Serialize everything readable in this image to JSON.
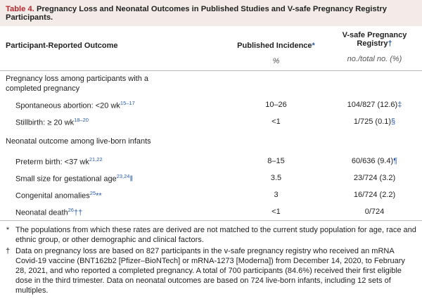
{
  "table": {
    "caption": {
      "label": "Table 4.",
      "title": "Pregnancy Loss and Neonatal Outcomes in Published Studies and V-safe Pregnancy Registry Participants."
    },
    "header": {
      "outcome": "Participant-Reported Outcome",
      "published": "Published Incidence",
      "published_mark": "*",
      "published_unit": "%",
      "vsafe": "V-safe Pregnancy Registry",
      "vsafe_mark": "†",
      "vsafe_unit": "no./total no. (%)"
    },
    "sections": [
      {
        "heading": "Pregnancy loss among participants with a completed pregnancy",
        "rows": [
          {
            "label": "Spontaneous abortion: <20 wk",
            "ref": "15–17",
            "published": "10–26",
            "vsafe": "104/827 (12.6)",
            "vsafe_mark": "‡"
          },
          {
            "label": "Stillbirth: ≥ 20 wk",
            "ref": "18–20",
            "published": "<1",
            "vsafe": "1/725 (0.1)",
            "vsafe_mark": "§"
          }
        ]
      },
      {
        "heading": "Neonatal outcome among live-born infants",
        "rows": [
          {
            "label": "Preterm birth: <37 wk",
            "ref": "21,22",
            "published": "8–15",
            "vsafe": "60/636 (9.4)",
            "vsafe_mark": "¶"
          },
          {
            "label": "Small size for gestational age",
            "ref": "23,24",
            "label_mark": "‖",
            "published": "3.5",
            "vsafe": "23/724 (3.2)"
          },
          {
            "label": "Congenital anomalies",
            "ref": "25",
            "label_mark": "**",
            "published": "3",
            "vsafe": "16/724 (2.2)"
          },
          {
            "label": "Neonatal death",
            "ref": "26",
            "label_mark": "††",
            "published": "<1",
            "vsafe": "0/724"
          }
        ]
      }
    ]
  },
  "footnotes": [
    {
      "symbol": "*",
      "text": "The populations from which these rates are derived are not matched to the current study population for age, race and ethnic group, or other demographic and clinical factors."
    },
    {
      "symbol": "†",
      "text": "Data on pregnancy loss are based on 827 participants in the v-safe pregnancy registry who received an mRNA Covid-19 vaccine (BNT162b2 [Pfizer–BioNTech] or mRNA-1273 [Moderna]) from December 14, 2020, to February 28, 2021, and who reported a completed pregnancy. A total of 700 participants (84.6%) received their first eligible dose in the third trimester. Data on neonatal outcomes are based on 724 live-born infants, including 12 sets of multiples."
    }
  ]
}
